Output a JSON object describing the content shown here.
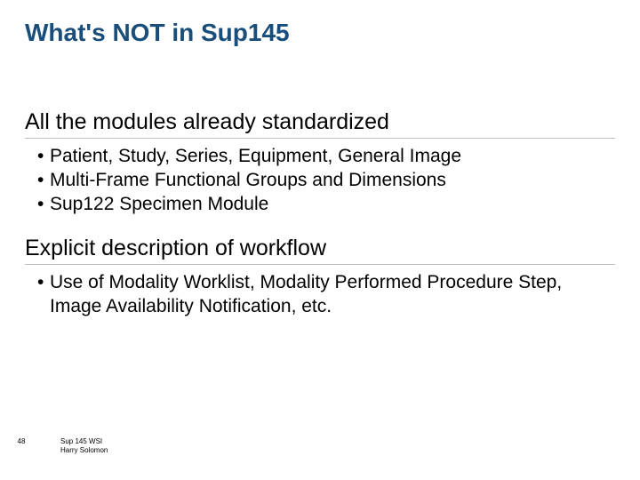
{
  "title": "What's NOT in Sup145",
  "sections": [
    {
      "heading": "All the modules already standardized",
      "bullets": [
        "Patient, Study, Series, Equipment, General Image",
        "Multi-Frame Functional Groups and Dimensions",
        "Sup122 Specimen Module"
      ]
    },
    {
      "heading": "Explicit description of workflow",
      "bullets": [
        "Use of Modality Worklist, Modality Performed Procedure Step, Image Availability Notification, etc."
      ]
    }
  ],
  "footer": {
    "page": "48",
    "line1": "Sup 145 WSI",
    "line2": "Harry Solomon"
  },
  "colors": {
    "title": "#1a4e7a",
    "text": "#000000",
    "rule": "#bfbfbf",
    "background": "#ffffff"
  }
}
